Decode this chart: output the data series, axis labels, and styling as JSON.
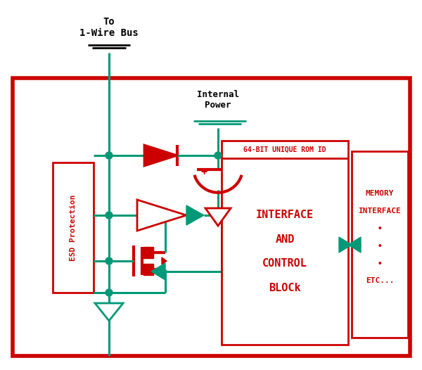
{
  "bg_color": "#ffffff",
  "red": "#cc0000",
  "teal": "#009977",
  "title_text": "To\n1-Wire Bus",
  "internal_power_text": "Internal\nPower",
  "esd_text": "ESD Protection",
  "rom_id_text": "64-BIT UNIQUE ROM ID",
  "interface_text": "INTERFACE\n\nAND\n\nCONTROL\n\nBLOCk",
  "memory_text": "MEMORY\n\nINTERFACE\n\n•\n\n•\n\n•\n\nETC..."
}
